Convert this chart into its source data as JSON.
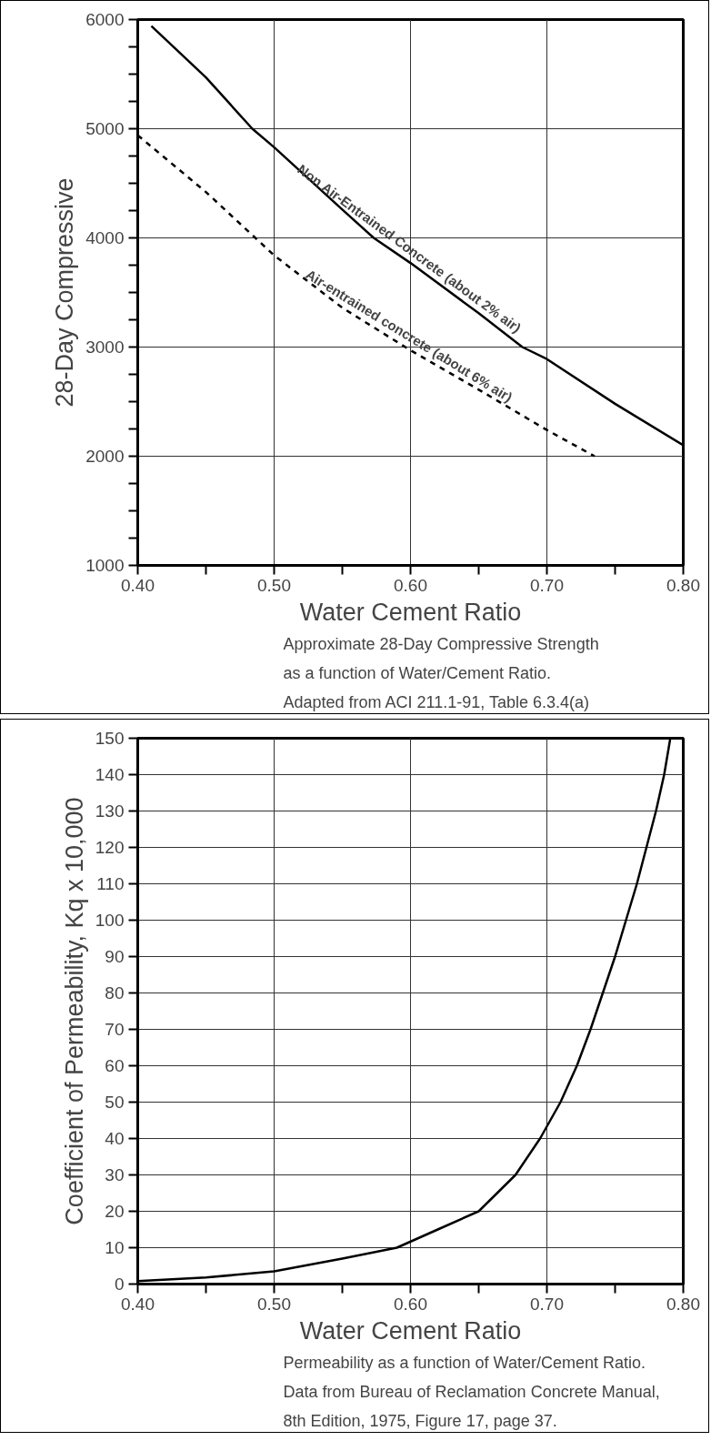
{
  "chart_data": [
    {
      "type": "line",
      "xlabel": "Water Cement Ratio",
      "ylabel": "28-Day Compressive",
      "xlim": [
        0.4,
        0.8
      ],
      "ylim": [
        1000,
        6000
      ],
      "xticks": [
        {
          "value": 0.4,
          "label": "0.40"
        },
        {
          "value": 0.45,
          "label": null
        },
        {
          "value": 0.5,
          "label": "0.50"
        },
        {
          "value": 0.55,
          "label": null
        },
        {
          "value": 0.6,
          "label": "0.60"
        },
        {
          "value": 0.65,
          "label": null
        },
        {
          "value": 0.7,
          "label": "0.70"
        },
        {
          "value": 0.75,
          "label": null
        },
        {
          "value": 0.8,
          "label": "0.80"
        }
      ],
      "yticks": [
        1000,
        {
          "value": 1250,
          "label": null
        },
        {
          "value": 1500,
          "label": null
        },
        {
          "value": 1750,
          "label": null
        },
        2000,
        {
          "value": 2250,
          "label": null
        },
        {
          "value": 2500,
          "label": null
        },
        {
          "value": 2750,
          "label": null
        },
        3000,
        {
          "value": 3250,
          "label": null
        },
        {
          "value": 3500,
          "label": null
        },
        {
          "value": 3750,
          "label": null
        },
        4000,
        {
          "value": 4250,
          "label": null
        },
        {
          "value": 4500,
          "label": null
        },
        {
          "value": 4750,
          "label": null
        },
        5000,
        {
          "value": 5250,
          "label": null
        },
        {
          "value": 5500,
          "label": null
        },
        {
          "value": 5750,
          "label": null
        },
        6000
      ],
      "grid": true,
      "series": [
        {
          "name": "Non Air-Entrained Concrete (about 2% air)",
          "color": "#000000",
          "line_style": "solid",
          "x": [
            0.41,
            0.45,
            0.484,
            0.5,
            0.55,
            0.573,
            0.6,
            0.65,
            0.682,
            0.7,
            0.75,
            0.8
          ],
          "values": [
            5940,
            5470,
            5000,
            4830,
            4260,
            4000,
            3770,
            3310,
            3000,
            2890,
            2480,
            2100
          ]
        },
        {
          "name": "Air-entrained concrete (about 6% air)",
          "color": "#000000",
          "line_style": "dashed",
          "x": [
            0.4,
            0.45,
            0.5,
            0.55,
            0.6,
            0.65,
            0.7,
            0.735
          ],
          "values": [
            4940,
            4420,
            3840,
            3360,
            2970,
            2610,
            2240,
            2000
          ]
        }
      ],
      "annotations": [
        "Approximate 28-Day Compressive Strength\nas a function of Water/Cement Ratio.\nAdapted from ACI 211.1-91, Table 6.3.4(a)"
      ]
    },
    {
      "type": "line",
      "xlabel": "Water Cement Ratio",
      "ylabel": "Coefficient of Permeability, Kq x 10,000",
      "xlim": [
        0.4,
        0.8
      ],
      "ylim": [
        0,
        150
      ],
      "xticks": [
        {
          "value": 0.4,
          "label": "0.40"
        },
        {
          "value": 0.45,
          "label": null
        },
        {
          "value": 0.5,
          "label": "0.50"
        },
        {
          "value": 0.55,
          "label": null
        },
        {
          "value": 0.6,
          "label": "0.60"
        },
        {
          "value": 0.65,
          "label": null
        },
        {
          "value": 0.7,
          "label": "0.70"
        },
        {
          "value": 0.75,
          "label": null
        },
        {
          "value": 0.8,
          "label": "0.80"
        }
      ],
      "yticks": [
        0,
        10,
        20,
        30,
        40,
        50,
        60,
        70,
        80,
        90,
        100,
        110,
        120,
        130,
        140,
        150
      ],
      "grid": true,
      "series": [
        {
          "color": "#000000",
          "line_style": "solid",
          "x": [
            0.4,
            0.45,
            0.5,
            0.55,
            0.59,
            0.62,
            0.65,
            0.677,
            0.695,
            0.71,
            0.722,
            0.732,
            0.741,
            0.75,
            0.758,
            0.766,
            0.773,
            0.78,
            0.786,
            0.7905
          ],
          "values": [
            0.8,
            1.8,
            3.5,
            7,
            10,
            15,
            20,
            30,
            40,
            50,
            60,
            70,
            80,
            90,
            100,
            110,
            120,
            130,
            140,
            150
          ]
        }
      ],
      "annotations": [
        "Permeability as a function of Water/Cement Ratio.\nData from Bureau of Reclamation Concrete Manual,\n8th Edition, 1975, Figure 17, page 37."
      ]
    }
  ]
}
